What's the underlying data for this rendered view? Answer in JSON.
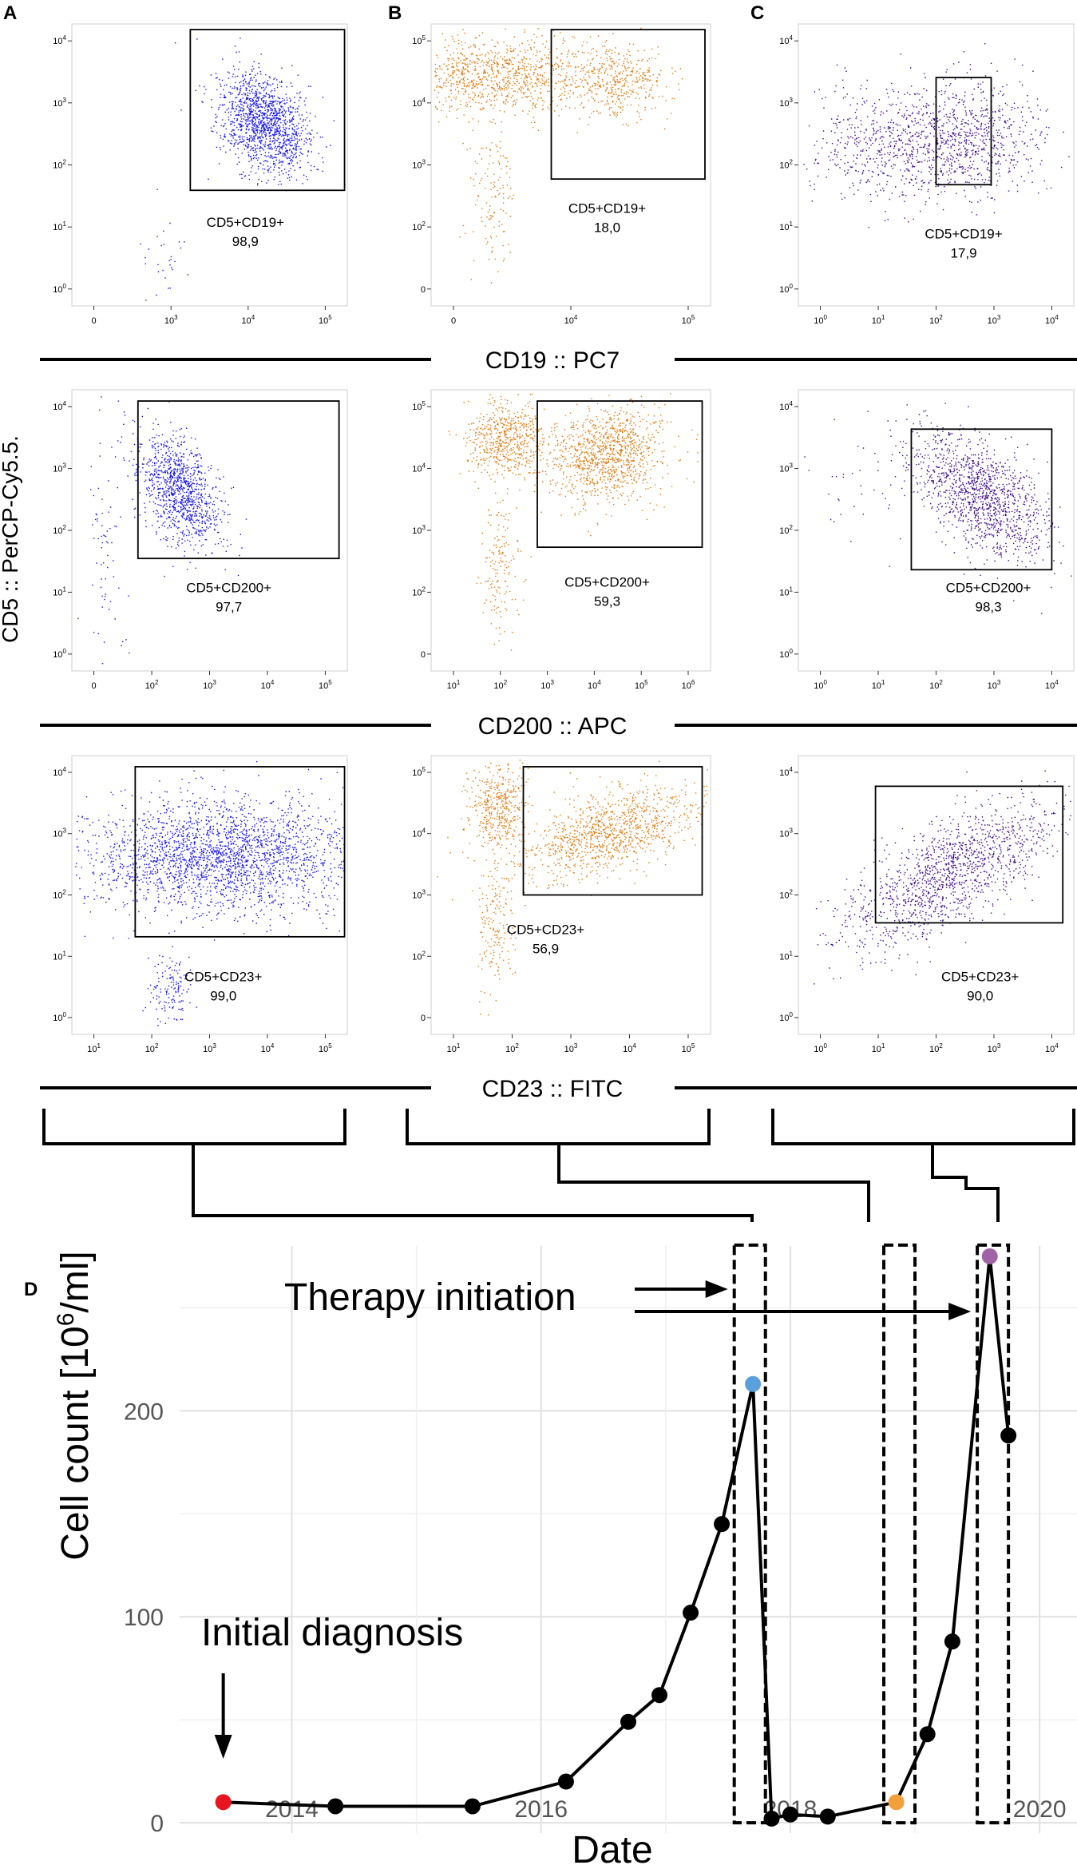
{
  "panel_labels": [
    "A",
    "B",
    "C",
    "D"
  ],
  "shared_y_label": "CD5 :: PerCP-Cy5.5.",
  "row_axis_labels": [
    "CD19 :: PC7",
    "CD200 :: APC",
    "CD23 :: FITC"
  ],
  "colors": {
    "A": "#1414e6",
    "B": "#e07b10",
    "C": "#3d0a8c",
    "red": "#e8141e",
    "blue": "#5aa0dc",
    "orange": "#f2a03c",
    "purple": "#a064a6"
  },
  "flow_panels": [
    {
      "id": "A1",
      "gate": "CD5+CD19+",
      "value": "98,9",
      "xt": [
        "0",
        "10^3",
        "10^4",
        "10^5"
      ],
      "yt": [
        "10^0",
        "10^1",
        "10^2",
        "10^3",
        "10^4"
      ]
    },
    {
      "id": "B1",
      "gate": "CD5+CD19+",
      "value": "18,0",
      "xt": [
        "0",
        "10^4",
        "10^5"
      ],
      "yt": [
        "0",
        "10^2",
        "10^3",
        "10^4",
        "10^5"
      ]
    },
    {
      "id": "C1",
      "gate": "CD5+CD19+",
      "value": "17,9",
      "xt": [
        "10^0",
        "10^1",
        "10^2",
        "10^3",
        "10^4"
      ],
      "yt": [
        "10^0",
        "10^1",
        "10^2",
        "10^3",
        "10^4"
      ]
    },
    {
      "id": "A2",
      "gate": "CD5+CD200+",
      "value": "97,7",
      "xt": [
        "0",
        "10^2",
        "10^3",
        "10^4",
        "10^5"
      ],
      "yt": [
        "10^0",
        "10^1",
        "10^2",
        "10^3",
        "10^4"
      ]
    },
    {
      "id": "B2",
      "gate": "CD5+CD200+",
      "value": "59,3",
      "xt": [
        "10^1",
        "10^2",
        "10^3",
        "10^4",
        "10^5",
        "10^6"
      ],
      "yt": [
        "0",
        "10^2",
        "10^3",
        "10^4",
        "10^5"
      ]
    },
    {
      "id": "C2",
      "gate": "CD5+CD200+",
      "value": "98,3",
      "xt": [
        "10^0",
        "10^1",
        "10^2",
        "10^3",
        "10^4"
      ],
      "yt": [
        "10^0",
        "10^1",
        "10^2",
        "10^3",
        "10^4"
      ]
    },
    {
      "id": "A3",
      "gate": "CD5+CD23+",
      "value": "99,0",
      "xt": [
        "10^1",
        "10^2",
        "10^3",
        "10^4",
        "10^5"
      ],
      "yt": [
        "10^0",
        "10^1",
        "10^2",
        "10^3",
        "10^4"
      ]
    },
    {
      "id": "B3",
      "gate": "CD5+CD23+",
      "value": "56,9",
      "xt": [
        "10^1",
        "10^2",
        "10^3",
        "10^4",
        "10^5"
      ],
      "yt": [
        "0",
        "10^2",
        "10^3",
        "10^4",
        "10^5"
      ]
    },
    {
      "id": "C3",
      "gate": "CD5+CD23+",
      "value": "90,0",
      "xt": [
        "10^0",
        "10^1",
        "10^2",
        "10^3",
        "10^4"
      ],
      "yt": [
        "10^0",
        "10^1",
        "10^2",
        "10^3",
        "10^4"
      ]
    }
  ],
  "chart_data": {
    "type": "line",
    "title": "",
    "xlabel": "Date",
    "ylabel": "Cell count [10^6/ml]",
    "xlim": [
      2013.1,
      2020.3
    ],
    "ylim": [
      -5,
      280
    ],
    "xticks": [
      2014,
      2016,
      2018,
      2020
    ],
    "yticks": [
      0,
      100,
      200
    ],
    "grid": true,
    "series": [
      {
        "name": "Cell count",
        "x": [
          2013.45,
          2014.35,
          2015.45,
          2016.2,
          2016.7,
          2016.95,
          2017.2,
          2017.45,
          2017.7,
          2017.85,
          2018.0,
          2018.3,
          2018.85,
          2019.1,
          2019.3,
          2019.6,
          2019.75
        ],
        "y": [
          10,
          8,
          8,
          20,
          49,
          62,
          102,
          145,
          213,
          2,
          4,
          3,
          10,
          43,
          88,
          275,
          188
        ]
      }
    ],
    "highlighted_points": [
      {
        "x": 2013.45,
        "y": 10,
        "color": "red"
      },
      {
        "x": 2017.7,
        "y": 213,
        "color": "blue"
      },
      {
        "x": 2018.85,
        "y": 10,
        "color": "orange"
      },
      {
        "x": 2019.6,
        "y": 275,
        "color": "purple"
      }
    ],
    "sample_windows": [
      [
        2017.55,
        2017.8
      ],
      [
        2018.75,
        2019.0
      ],
      [
        2019.5,
        2019.75
      ]
    ],
    "annotations": [
      {
        "text": "Initial diagnosis",
        "target_x": 2013.45
      },
      {
        "text": "Therapy initiation",
        "targets_x": [
          2017.55,
          2019.5
        ]
      }
    ]
  }
}
